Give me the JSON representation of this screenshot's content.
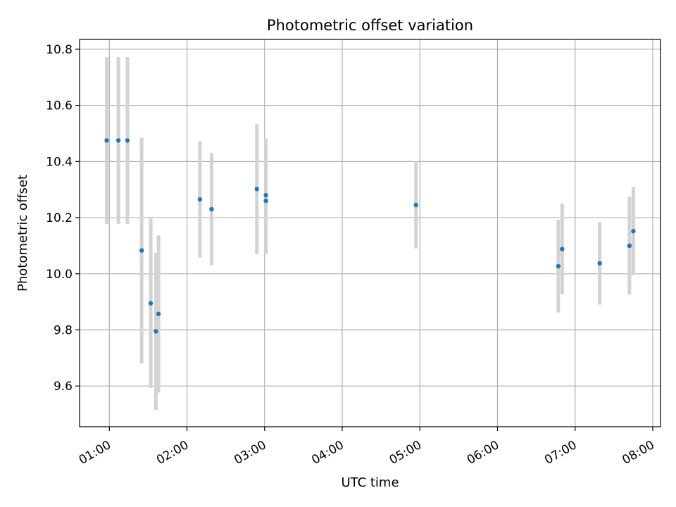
{
  "chart_data": {
    "type": "scatter",
    "title": "Photometric offset variation",
    "xlabel": "UTC time",
    "ylabel": "Photometric offset",
    "x_ticks": [
      "01:00",
      "02:00",
      "03:00",
      "04:00",
      "05:00",
      "06:00",
      "07:00",
      "08:00"
    ],
    "y_ticks": [
      "9.6",
      "9.8",
      "10.0",
      "10.2",
      "10.4",
      "10.6",
      "10.8"
    ],
    "xlim": [
      "00:37",
      "08:06"
    ],
    "ylim": [
      9.455,
      10.835
    ],
    "grid": true,
    "colors": {
      "points": "#1f77b4",
      "errorbars": "#d3d3d3",
      "grid": "#b0b0b0"
    },
    "series": [
      {
        "points": [
          {
            "x": "00:58",
            "y": 10.475,
            "yerr": 0.297
          },
          {
            "x": "01:07",
            "y": 10.475,
            "yerr": 0.297
          },
          {
            "x": "01:14",
            "y": 10.475,
            "yerr": 0.297
          },
          {
            "x": "01:25",
            "y": 10.083,
            "yerr": 0.402
          },
          {
            "x": "01:32",
            "y": 9.895,
            "yerr": 0.302
          },
          {
            "x": "01:36",
            "y": 9.795,
            "yerr": 0.28
          },
          {
            "x": "01:38",
            "y": 9.857,
            "yerr": 0.28
          },
          {
            "x": "02:10",
            "y": 10.265,
            "yerr": 0.207
          },
          {
            "x": "02:19",
            "y": 10.23,
            "yerr": 0.2
          },
          {
            "x": "02:54",
            "y": 10.302,
            "yerr": 0.232
          },
          {
            "x": "03:01",
            "y": 10.28,
            "yerr": 0.202
          },
          {
            "x": "03:01",
            "y": 10.26,
            "yerr": 0.19
          },
          {
            "x": "04:57",
            "y": 10.245,
            "yerr": 0.155
          },
          {
            "x": "06:47",
            "y": 10.027,
            "yerr": 0.165
          },
          {
            "x": "06:50",
            "y": 10.088,
            "yerr": 0.162
          },
          {
            "x": "07:19",
            "y": 10.037,
            "yerr": 0.147
          },
          {
            "x": "07:42",
            "y": 10.1,
            "yerr": 0.175
          },
          {
            "x": "07:45",
            "y": 10.152,
            "yerr": 0.157
          }
        ]
      }
    ]
  }
}
